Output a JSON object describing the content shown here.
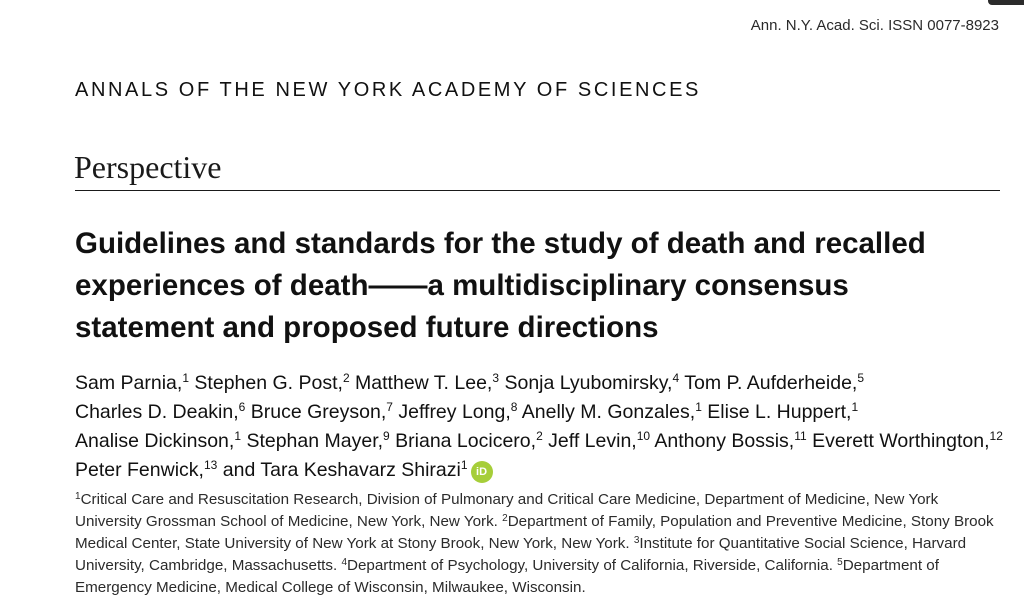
{
  "header": {
    "issn": "Ann. N.Y. Acad. Sci. ISSN 0077-8923",
    "journal": "ANNALS OF THE NEW YORK ACADEMY OF SCIENCES",
    "section": "Perspective"
  },
  "article": {
    "title": "Guidelines and standards for the study of death and recalled experiences of death——a multidisciplinary consensus statement and proposed future directions"
  },
  "authors": [
    {
      "name": "Sam Parnia,",
      "sup": "1"
    },
    {
      "name": "Stephen G. Post,",
      "sup": "2"
    },
    {
      "name": "Matthew T. Lee,",
      "sup": "3"
    },
    {
      "name": "Sonja Lyubomirsky,",
      "sup": "4"
    },
    {
      "name": "Tom P. Aufderheide,",
      "sup": "5"
    },
    {
      "name": "Charles D. Deakin,",
      "sup": "6"
    },
    {
      "name": "Bruce Greyson,",
      "sup": "7"
    },
    {
      "name": "Jeffrey Long,",
      "sup": "8"
    },
    {
      "name": "Anelly M. Gonzales,",
      "sup": "1"
    },
    {
      "name": "Elise L. Huppert,",
      "sup": "1"
    },
    {
      "name": "Analise Dickinson,",
      "sup": "1"
    },
    {
      "name": "Stephan Mayer,",
      "sup": "9"
    },
    {
      "name": "Briana Locicero,",
      "sup": "2"
    },
    {
      "name": "Jeff Levin,",
      "sup": "10"
    },
    {
      "name": "Anthony Bossis,",
      "sup": "11"
    },
    {
      "name": "Everett Worthington,",
      "sup": "12"
    },
    {
      "name": "Peter Fenwick,",
      "sup": "13"
    },
    {
      "name": "and Tara Keshavarz Shirazi",
      "sup": "1"
    }
  ],
  "orcid_icon_text": "iD",
  "affiliations": [
    {
      "num": "1",
      "text": "Critical Care and Resuscitation Research, Division of Pulmonary and Critical Care Medicine, Department of Medicine, New York University Grossman School of Medicine, New York, New York. "
    },
    {
      "num": "2",
      "text": "Department of Family, Population and Preventive Medicine, Stony Brook Medical Center, State University of New York at Stony Brook, New York, New York. "
    },
    {
      "num": "3",
      "text": "Institute for Quantitative Social Science, Harvard University, Cambridge, Massachusetts. "
    },
    {
      "num": "4",
      "text": "Department of Psychology, University of California, Riverside, California. "
    },
    {
      "num": "5",
      "text": "Department of Emergency Medicine, Medical College of Wisconsin, Milwaukee, Wisconsin."
    }
  ],
  "colors": {
    "orcid": "#a6ce39",
    "text": "#111111"
  }
}
